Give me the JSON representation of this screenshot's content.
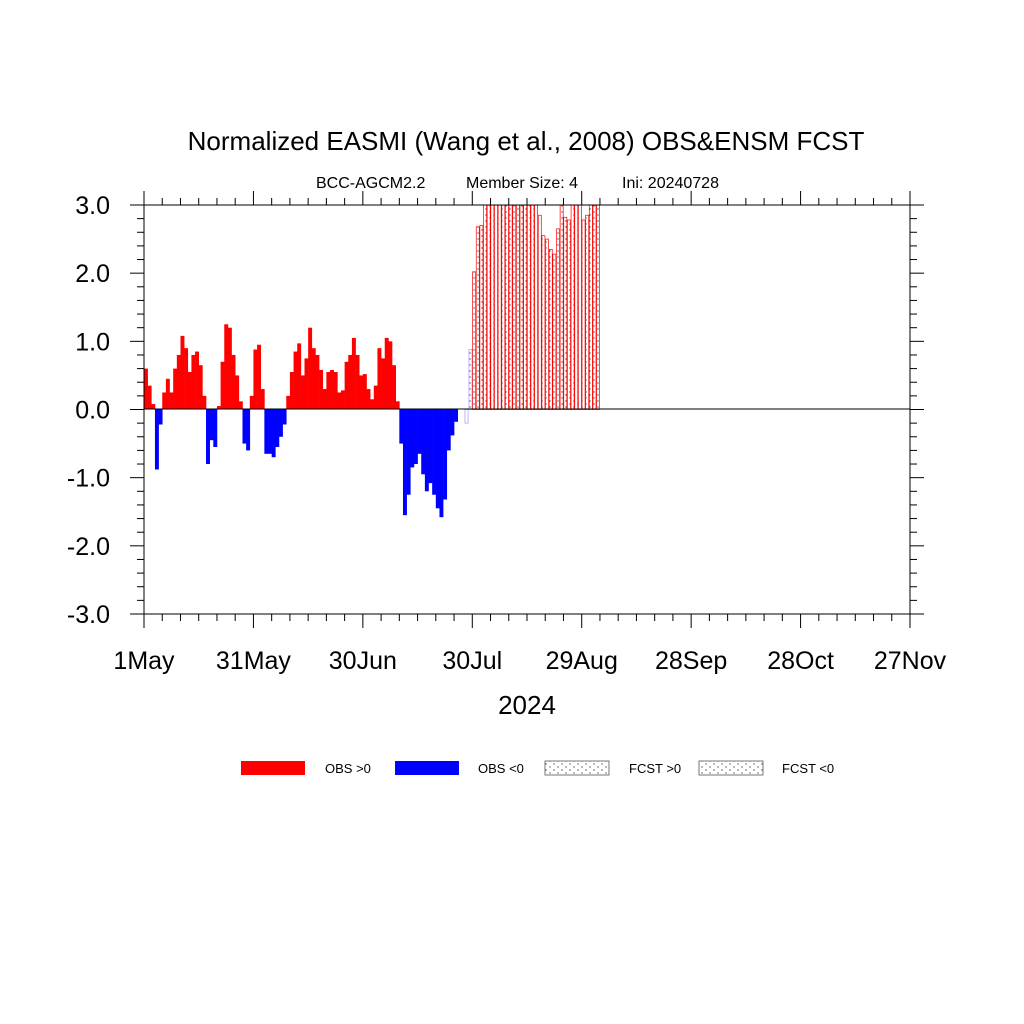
{
  "chart_data": {
    "type": "bar",
    "title": "Normalized EASMI (Wang et al., 2008) OBS&ENSM FCST",
    "subtitle": {
      "model": "BCC-AGCM2.2",
      "members": "Member Size: 4",
      "init": "Ini: 20240728"
    },
    "xlabel": "2024",
    "ylabel": "",
    "ylim": [
      -3,
      3
    ],
    "x_start": "1May",
    "x_ticks": [
      {
        "day": 0,
        "label": "1May"
      },
      {
        "day": 30,
        "label": "31May"
      },
      {
        "day": 60,
        "label": "30Jun"
      },
      {
        "day": 90,
        "label": "30Jul"
      },
      {
        "day": 120,
        "label": "29Aug"
      },
      {
        "day": 150,
        "label": "28Sep"
      },
      {
        "day": 180,
        "label": "28Oct"
      },
      {
        "day": 210,
        "label": "27Nov"
      }
    ],
    "x_range_days": [
      0,
      210
    ],
    "y_ticks": [
      {
        "value": 3,
        "label": "3.0"
      },
      {
        "value": 2,
        "label": "2.0"
      },
      {
        "value": 1,
        "label": "1.0"
      },
      {
        "value": 0,
        "label": "0.0"
      },
      {
        "value": -1,
        "label": "-1.0"
      },
      {
        "value": -2,
        "label": "-2.0"
      },
      {
        "value": -3,
        "label": "-3.0"
      }
    ],
    "obs_start_day": 0,
    "obs_values": [
      0.6,
      0.35,
      0.08,
      -0.88,
      -0.22,
      0.25,
      0.45,
      0.25,
      0.6,
      0.8,
      1.08,
      0.9,
      0.55,
      0.8,
      0.85,
      0.65,
      0.2,
      -0.8,
      -0.45,
      -0.55,
      0.05,
      0.7,
      1.25,
      1.2,
      0.8,
      0.5,
      0.12,
      -0.5,
      -0.6,
      0.2,
      0.88,
      0.95,
      0.3,
      -0.65,
      -0.65,
      -0.7,
      -0.55,
      -0.4,
      -0.22,
      0.2,
      0.55,
      0.85,
      0.97,
      0.5,
      0.75,
      1.2,
      0.9,
      0.8,
      0.58,
      0.3,
      0.55,
      0.58,
      0.55,
      0.25,
      0.28,
      0.7,
      0.8,
      1.05,
      0.8,
      0.5,
      0.52,
      0.3,
      0.15,
      0.35,
      0.9,
      0.75,
      1.05,
      1.0,
      0.65,
      0.12,
      -0.5,
      -1.55,
      -1.25,
      -0.85,
      -0.8,
      -0.65,
      -0.95,
      -1.2,
      -1.08,
      -1.25,
      -1.45,
      -1.58,
      -1.32,
      -0.6,
      -0.38,
      -0.18
    ],
    "fcst_start_day": 89,
    "fcst_values": [
      0.88,
      2.02,
      2.68,
      2.7,
      3.0,
      3.0,
      3.0,
      3.0,
      3.0,
      3.0,
      3.0,
      3.0,
      3.0,
      3.0,
      3.0,
      3.0,
      3.0,
      3.0,
      3.0,
      2.85,
      2.55,
      2.5,
      2.35,
      2.28,
      2.65,
      3.0,
      2.82,
      2.78,
      3.0,
      3.0,
      3.0,
      2.78,
      2.85,
      3.0,
      3.0,
      3.0
    ],
    "colors": {
      "obs_pos": "#ff0000",
      "obs_neg": "#0000ff",
      "fcst_pos": "#ff0000",
      "fcst_neg": "#0000ff"
    },
    "legend": {
      "placement": "bottom",
      "items": [
        {
          "label": "OBS >0",
          "style": "solid-red"
        },
        {
          "label": "OBS <0",
          "style": "solid-blue"
        },
        {
          "label": "FCST >0",
          "style": "dotted"
        },
        {
          "label": "FCST <0",
          "style": "dotted"
        }
      ]
    },
    "grid": false
  }
}
